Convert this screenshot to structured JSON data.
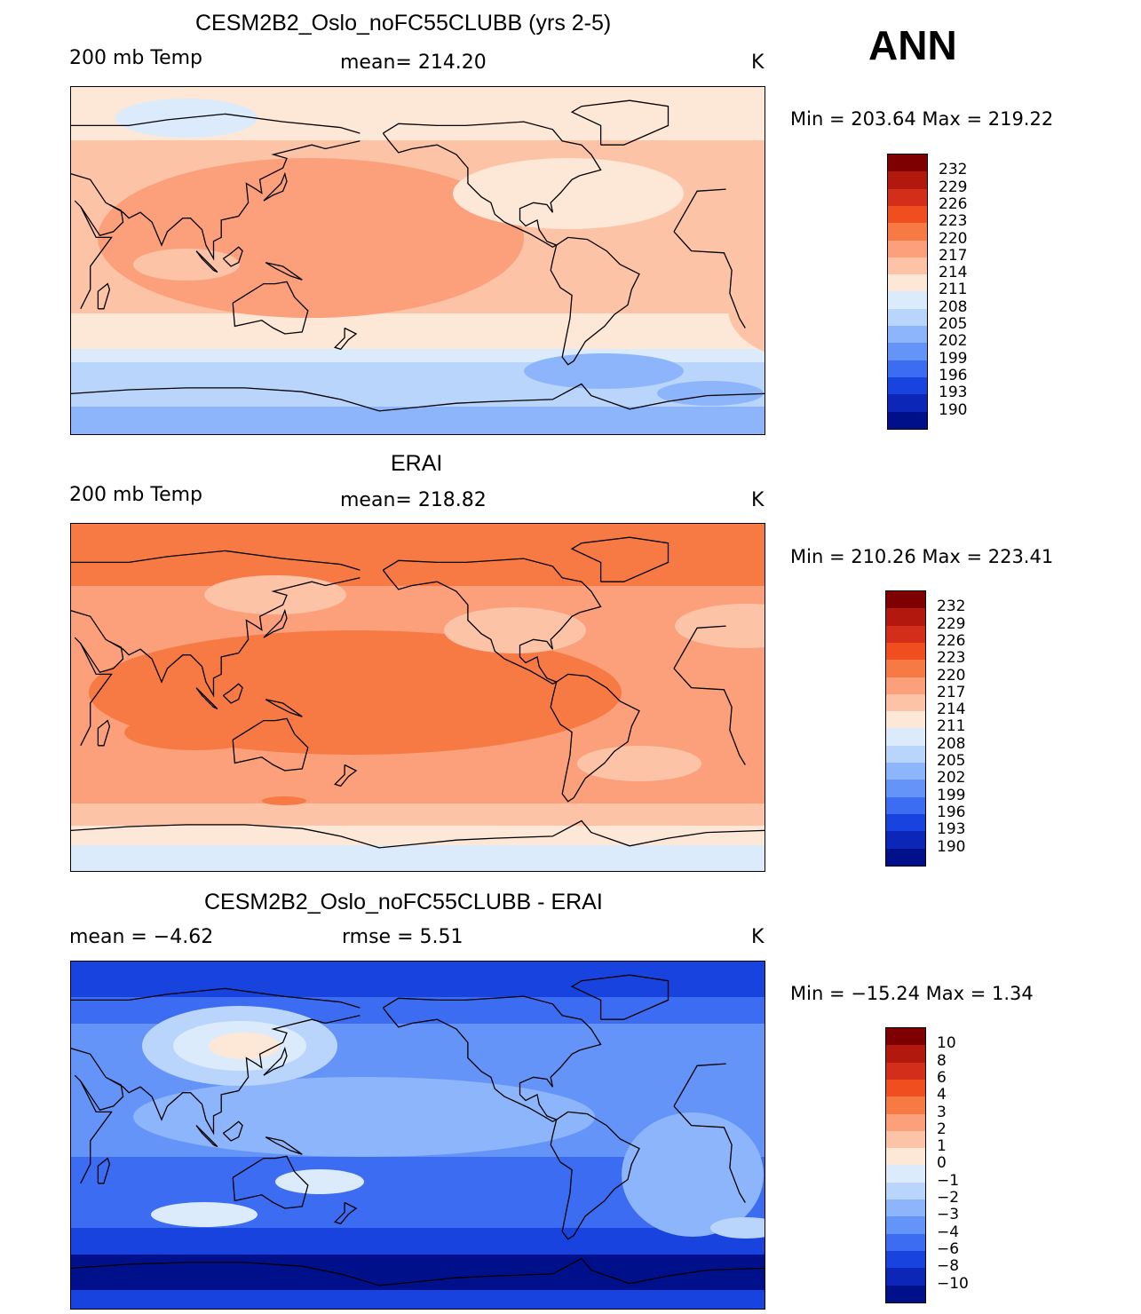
{
  "season": "ANN",
  "panels": [
    {
      "title": "CESM2B2_Oslo_noFC55CLUBB (yrs 2-5)",
      "left_label": "200 mb Temp",
      "center_label": "mean=  214.20",
      "units": "K",
      "min_max": "Min  =  203.64  Max  =  219.22",
      "field": "model",
      "colorbar": [
        "232",
        "229",
        "226",
        "223",
        "220",
        "217",
        "214",
        "211",
        "208",
        "205",
        "202",
        "199",
        "196",
        "193",
        "190"
      ]
    },
    {
      "title": "ERAI",
      "left_label": "200 mb Temp",
      "center_label": "mean=  218.82",
      "units": "K",
      "min_max": "Min  =  210.26  Max  =  223.41",
      "field": "obs",
      "colorbar": [
        "232",
        "229",
        "226",
        "223",
        "220",
        "217",
        "214",
        "211",
        "208",
        "205",
        "202",
        "199",
        "196",
        "193",
        "190"
      ]
    },
    {
      "title": "CESM2B2_Oslo_noFC55CLUBB - ERAI",
      "left_label": "mean  =    −4.62",
      "center_label": "rmse  =     5.51",
      "units": "K",
      "min_max": "Min  =  −15.24  Max  =     1.34",
      "field": "diff",
      "colorbar": [
        "10",
        "8",
        "6",
        "4",
        "3",
        "2",
        "1",
        "0",
        "−1",
        "−2",
        "−3",
        "−4",
        "−6",
        "−8",
        "−10"
      ]
    }
  ],
  "colors": {
    "palette": [
      "#7f0000",
      "#b2180e",
      "#d22e1a",
      "#f04e1f",
      "#f77a45",
      "#fba07a",
      "#fcc3a6",
      "#fde7d6",
      "#dcebfb",
      "#b9d5fc",
      "#8db5fb",
      "#6594f8",
      "#3b6cf2",
      "#1943de",
      "#0c27b8",
      "#00108a"
    ]
  }
}
